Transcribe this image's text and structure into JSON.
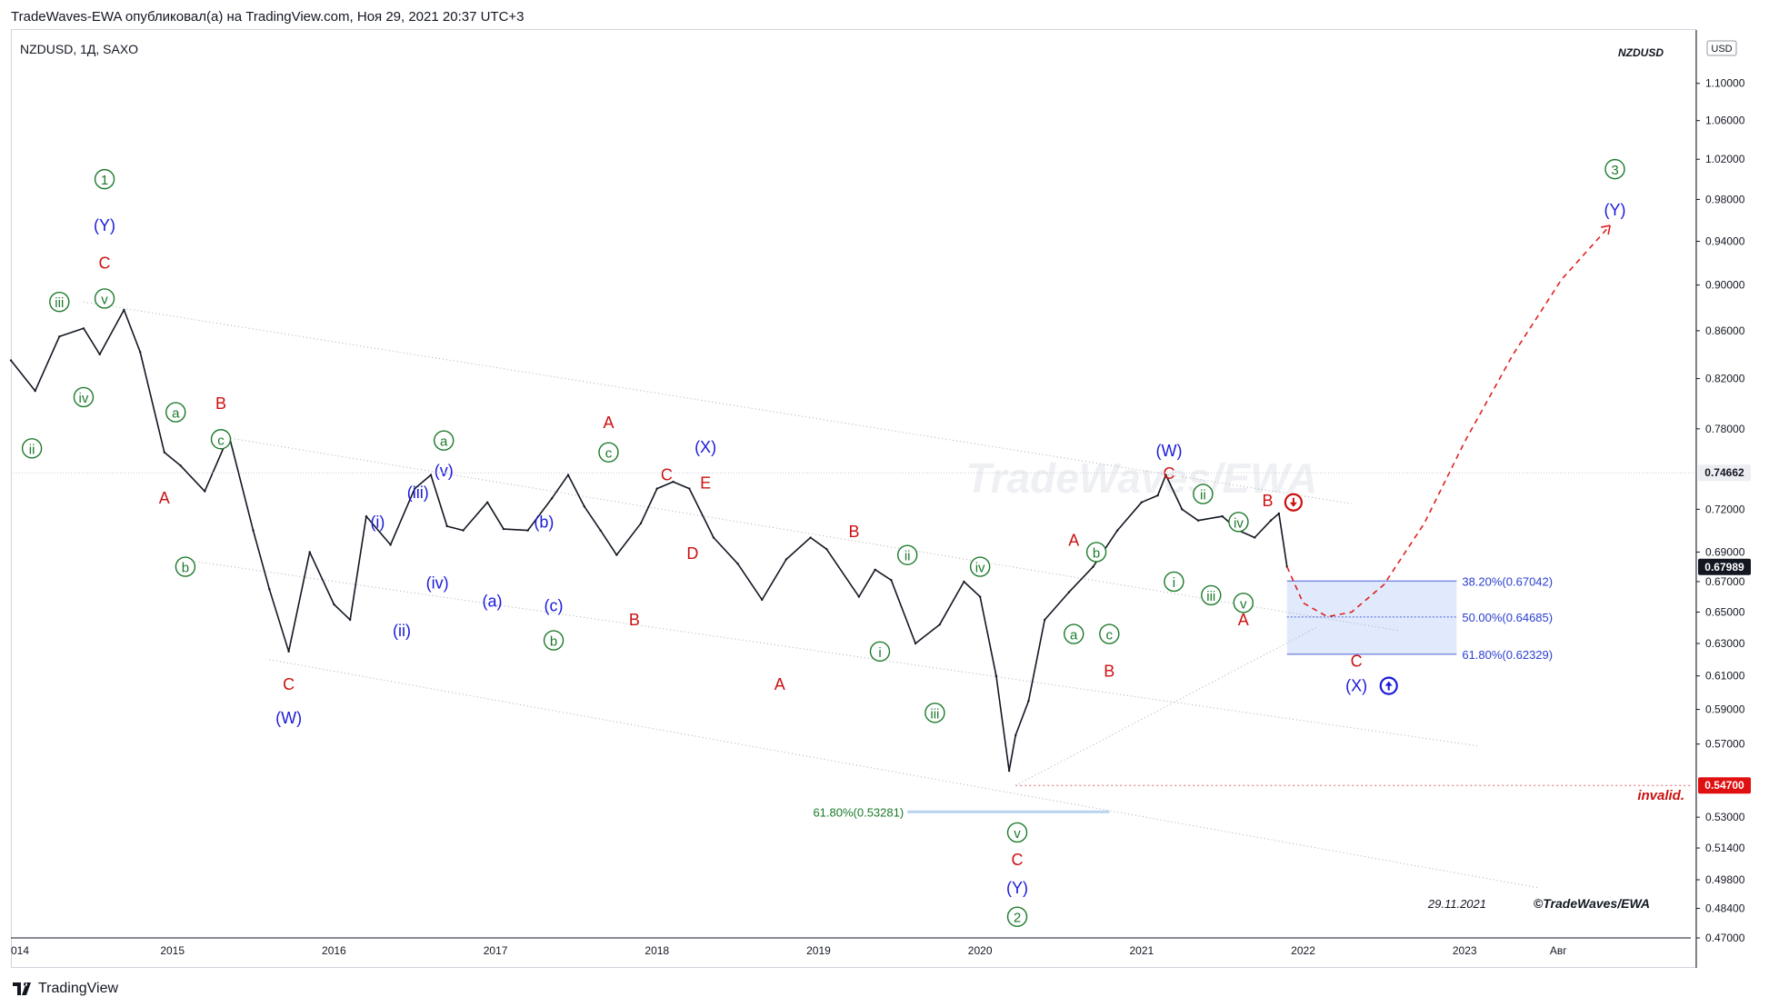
{
  "header": {
    "publisher": "TradeWaves-EWA опубликовал(а) на TradingView.com, Ноя 29, 2021 20:37 UTC+3"
  },
  "symbol_line": "NZDUSD, 1Д, SAXO",
  "top_right_tag": "NZDUSD",
  "currency_tag": "USD",
  "watermark": "TradeWaves/EWA",
  "signature_date": "29.11.2021",
  "signature": "©TradeWaves/EWA",
  "footer": {
    "brand": "TradingView"
  },
  "invalid_label": "invalid.",
  "colors": {
    "green": "#1b7a2a",
    "blue": "#1a1adb",
    "red": "#cc1111",
    "fib_zone": "#dbe6fb",
    "price_line": "#d1d4dc"
  },
  "chart_data": {
    "type": "line",
    "title": "NZDUSD, 1Д, SAXO",
    "y_scale": "log",
    "ylim": [
      0.47,
      1.16
    ],
    "xlim": [
      2014.0,
      2024.4
    ],
    "y_ticks": [
      "1.10000",
      "1.06000",
      "1.02000",
      "0.98000",
      "0.94000",
      "0.90000",
      "0.86000",
      "0.82000",
      "0.78000",
      "0.72000",
      "0.69000",
      "0.67000",
      "0.65000",
      "0.63000",
      "0.61000",
      "0.59000",
      "0.57000",
      "0.53000",
      "0.51400",
      "0.49800",
      "0.48400",
      "0.47000"
    ],
    "x_ticks": [
      "014",
      "2015",
      "2016",
      "2017",
      "2018",
      "2019",
      "2020",
      "2021",
      "2022",
      "2023",
      "Авг"
    ],
    "price_badges": [
      {
        "label": "0.74662",
        "value": 0.74662,
        "style": "gray"
      },
      {
        "label": "0.67989",
        "value": 0.67989,
        "style": "dark"
      },
      {
        "label": "0.54700",
        "value": 0.547,
        "style": "red"
      }
    ],
    "series": [
      {
        "name": "NZDUSD",
        "x": [
          2014.0,
          2014.15,
          2014.3,
          2014.45,
          2014.55,
          2014.7,
          2014.8,
          2014.95,
          2015.05,
          2015.2,
          2015.35,
          2015.5,
          2015.6,
          2015.72,
          2015.85,
          2016.0,
          2016.1,
          2016.2,
          2016.35,
          2016.5,
          2016.6,
          2016.7,
          2016.8,
          2016.95,
          2017.05,
          2017.2,
          2017.35,
          2017.45,
          2017.55,
          2017.65,
          2017.75,
          2017.9,
          2018.0,
          2018.1,
          2018.2,
          2018.35,
          2018.5,
          2018.65,
          2018.8,
          2018.95,
          2019.05,
          2019.25,
          2019.35,
          2019.45,
          2019.6,
          2019.75,
          2019.9,
          2020.0,
          2020.1,
          2020.18,
          2020.22,
          2020.3,
          2020.4,
          2020.55,
          2020.7,
          2020.85,
          2021.0,
          2021.1,
          2021.15,
          2021.25,
          2021.35,
          2021.5,
          2021.6,
          2021.7,
          2021.8,
          2021.85,
          2021.9
        ],
        "y": [
          0.835,
          0.81,
          0.855,
          0.862,
          0.84,
          0.878,
          0.842,
          0.762,
          0.752,
          0.733,
          0.775,
          0.705,
          0.665,
          0.625,
          0.69,
          0.655,
          0.645,
          0.715,
          0.695,
          0.735,
          0.745,
          0.708,
          0.705,
          0.725,
          0.706,
          0.705,
          0.728,
          0.745,
          0.722,
          0.705,
          0.688,
          0.71,
          0.735,
          0.74,
          0.735,
          0.7,
          0.682,
          0.658,
          0.685,
          0.7,
          0.692,
          0.66,
          0.678,
          0.671,
          0.63,
          0.642,
          0.67,
          0.66,
          0.61,
          0.555,
          0.575,
          0.595,
          0.645,
          0.663,
          0.68,
          0.705,
          0.725,
          0.73,
          0.745,
          0.72,
          0.712,
          0.715,
          0.705,
          0.7,
          0.712,
          0.717,
          0.68
        ]
      }
    ],
    "projection": {
      "x": [
        2021.9,
        2022.0,
        2022.15,
        2022.3,
        2022.5,
        2022.75,
        2023.0,
        2023.3,
        2023.6,
        2023.9
      ],
      "y": [
        0.68,
        0.656,
        0.647,
        0.65,
        0.668,
        0.71,
        0.77,
        0.84,
        0.905,
        0.955
      ]
    },
    "fib_zone": {
      "x_range": [
        2021.9,
        2022.95
      ],
      "y_range": [
        0.67042,
        0.62329
      ],
      "levels": [
        {
          "label": "38.20%(0.67042)",
          "value": 0.67042
        },
        {
          "label": "50.00%(0.64685)",
          "value": 0.64685
        },
        {
          "label": "61.80%(0.62329)",
          "value": 0.62329
        }
      ]
    },
    "fib_low": {
      "label": "61.80%(0.53281)",
      "value": 0.53281,
      "x_range": [
        2019.55,
        2020.8
      ]
    },
    "invalid_level": 0.547,
    "wave_labels": [
      {
        "t": "1",
        "x": 2014.58,
        "y": 1.0,
        "c": "green",
        "circle": true
      },
      {
        "t": "(Y)",
        "x": 2014.58,
        "y": 0.955,
        "c": "blue"
      },
      {
        "t": "C",
        "x": 2014.58,
        "y": 0.92,
        "c": "red"
      },
      {
        "t": "iii",
        "x": 2014.3,
        "y": 0.885,
        "c": "green",
        "circle": true
      },
      {
        "t": "v",
        "x": 2014.58,
        "y": 0.888,
        "c": "green",
        "circle": true
      },
      {
        "t": "iv",
        "x": 2014.45,
        "y": 0.805,
        "c": "green",
        "circle": true
      },
      {
        "t": "ii",
        "x": 2014.13,
        "y": 0.765,
        "c": "green",
        "circle": true
      },
      {
        "t": "a",
        "x": 2015.02,
        "y": 0.793,
        "c": "green",
        "circle": true
      },
      {
        "t": "B",
        "x": 2015.3,
        "y": 0.8,
        "c": "red"
      },
      {
        "t": "c",
        "x": 2015.3,
        "y": 0.772,
        "c": "green",
        "circle": true
      },
      {
        "t": "A",
        "x": 2014.95,
        "y": 0.728,
        "c": "red"
      },
      {
        "t": "b",
        "x": 2015.08,
        "y": 0.68,
        "c": "green",
        "circle": true
      },
      {
        "t": "C",
        "x": 2015.72,
        "y": 0.605,
        "c": "red"
      },
      {
        "t": "(W)",
        "x": 2015.72,
        "y": 0.585,
        "c": "blue"
      },
      {
        "t": "a",
        "x": 2016.68,
        "y": 0.771,
        "c": "green",
        "circle": true
      },
      {
        "t": "(v)",
        "x": 2016.68,
        "y": 0.748,
        "c": "blue"
      },
      {
        "t": "(iii)",
        "x": 2016.52,
        "y": 0.732,
        "c": "blue"
      },
      {
        "t": "(i)",
        "x": 2016.27,
        "y": 0.711,
        "c": "blue"
      },
      {
        "t": "(iv)",
        "x": 2016.64,
        "y": 0.669,
        "c": "blue"
      },
      {
        "t": "(ii)",
        "x": 2016.42,
        "y": 0.638,
        "c": "blue"
      },
      {
        "t": "(b)",
        "x": 2017.3,
        "y": 0.711,
        "c": "blue"
      },
      {
        "t": "(a)",
        "x": 2016.98,
        "y": 0.657,
        "c": "blue"
      },
      {
        "t": "(c)",
        "x": 2017.36,
        "y": 0.654,
        "c": "blue"
      },
      {
        "t": "b",
        "x": 2017.36,
        "y": 0.632,
        "c": "green",
        "circle": true
      },
      {
        "t": "A",
        "x": 2017.7,
        "y": 0.785,
        "c": "red"
      },
      {
        "t": "c",
        "x": 2017.7,
        "y": 0.762,
        "c": "green",
        "circle": true
      },
      {
        "t": "C",
        "x": 2018.06,
        "y": 0.745,
        "c": "red"
      },
      {
        "t": "(X)",
        "x": 2018.3,
        "y": 0.766,
        "c": "blue"
      },
      {
        "t": "E",
        "x": 2018.3,
        "y": 0.739,
        "c": "red"
      },
      {
        "t": "D",
        "x": 2018.22,
        "y": 0.689,
        "c": "red"
      },
      {
        "t": "B",
        "x": 2017.86,
        "y": 0.645,
        "c": "red"
      },
      {
        "t": "B",
        "x": 2019.22,
        "y": 0.704,
        "c": "red"
      },
      {
        "t": "A",
        "x": 2018.76,
        "y": 0.605,
        "c": "red"
      },
      {
        "t": "ii",
        "x": 2019.55,
        "y": 0.688,
        "c": "green",
        "circle": true
      },
      {
        "t": "iv",
        "x": 2020.0,
        "y": 0.68,
        "c": "green",
        "circle": true
      },
      {
        "t": "i",
        "x": 2019.38,
        "y": 0.625,
        "c": "green",
        "circle": true
      },
      {
        "t": "iii",
        "x": 2019.72,
        "y": 0.588,
        "c": "green",
        "circle": true
      },
      {
        "t": "v",
        "x": 2020.23,
        "y": 0.522,
        "c": "green",
        "circle": true
      },
      {
        "t": "C",
        "x": 2020.23,
        "y": 0.508,
        "c": "red"
      },
      {
        "t": "(Y)",
        "x": 2020.23,
        "y": 0.494,
        "c": "blue"
      },
      {
        "t": "2",
        "x": 2020.23,
        "y": 0.48,
        "c": "green",
        "circle": true
      },
      {
        "t": "A",
        "x": 2020.58,
        "y": 0.698,
        "c": "red"
      },
      {
        "t": "b",
        "x": 2020.72,
        "y": 0.69,
        "c": "green",
        "circle": true
      },
      {
        "t": "a",
        "x": 2020.58,
        "y": 0.636,
        "c": "green",
        "circle": true
      },
      {
        "t": "c",
        "x": 2020.8,
        "y": 0.636,
        "c": "green",
        "circle": true
      },
      {
        "t": "B",
        "x": 2020.8,
        "y": 0.613,
        "c": "red"
      },
      {
        "t": "(W)",
        "x": 2021.17,
        "y": 0.763,
        "c": "blue"
      },
      {
        "t": "C",
        "x": 2021.17,
        "y": 0.746,
        "c": "red"
      },
      {
        "t": "ii",
        "x": 2021.38,
        "y": 0.731,
        "c": "green",
        "circle": true
      },
      {
        "t": "iv",
        "x": 2021.6,
        "y": 0.711,
        "c": "green",
        "circle": true
      },
      {
        "t": "B",
        "x": 2021.78,
        "y": 0.726,
        "c": "red"
      },
      {
        "t": "i",
        "x": 2021.2,
        "y": 0.67,
        "c": "green",
        "circle": true
      },
      {
        "t": "iii",
        "x": 2021.43,
        "y": 0.661,
        "c": "green",
        "circle": true
      },
      {
        "t": "v",
        "x": 2021.63,
        "y": 0.656,
        "c": "green",
        "circle": true
      },
      {
        "t": "A",
        "x": 2021.63,
        "y": 0.645,
        "c": "red"
      },
      {
        "t": "C",
        "x": 2022.33,
        "y": 0.619,
        "c": "red"
      },
      {
        "t": "(X)",
        "x": 2022.33,
        "y": 0.604,
        "c": "blue"
      },
      {
        "t": "3",
        "x": 2023.93,
        "y": 1.01,
        "c": "green",
        "circle": true
      },
      {
        "t": "(Y)",
        "x": 2023.93,
        "y": 0.97,
        "c": "blue"
      }
    ]
  }
}
